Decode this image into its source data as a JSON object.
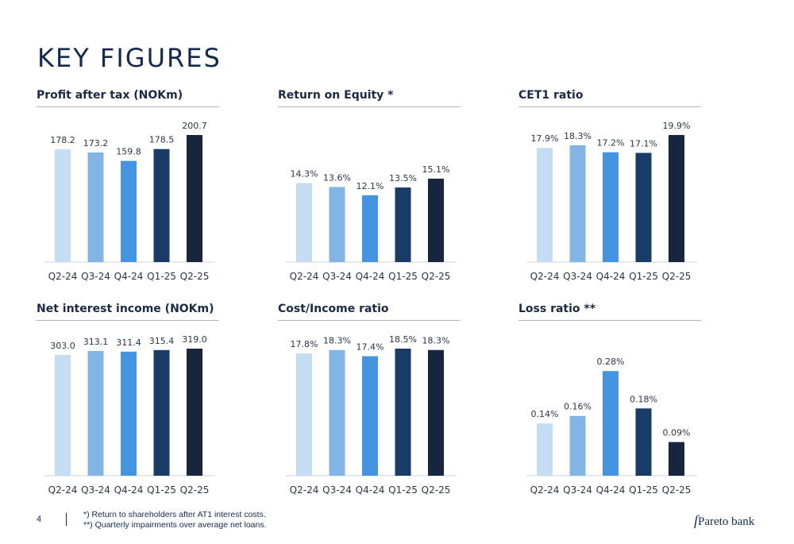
{
  "page": {
    "title": "KEY FIGURES",
    "page_number": "4",
    "footnotes": [
      "*) Return to shareholders after AT1 interest costs.",
      "**) Quarterly impairments over average net loans."
    ],
    "logo_text": "Pareto bank"
  },
  "colors": [
    "#c5ddf2",
    "#82b5e5",
    "#4494df",
    "#183c66",
    "#17253d"
  ],
  "chart_data": [
    {
      "type": "bar",
      "title": "Profit after tax (NOKm)",
      "categories": [
        "Q2-24",
        "Q3-24",
        "Q4-24",
        "Q1-25",
        "Q2-25"
      ],
      "values": [
        178.2,
        173.2,
        159.8,
        178.5,
        200.7
      ],
      "labels": [
        "178.2",
        "173.2",
        "159.8",
        "178.5",
        "200.7"
      ],
      "ylim": [
        0,
        200.7
      ],
      "grid": false
    },
    {
      "type": "bar",
      "title": "Return on Equity *",
      "categories": [
        "Q2-24",
        "Q3-24",
        "Q4-24",
        "Q1-25",
        "Q2-25"
      ],
      "values": [
        14.3,
        13.6,
        12.1,
        13.5,
        15.1
      ],
      "labels": [
        "14.3%",
        "13.6%",
        "12.1%",
        "13.5%",
        "15.1%"
      ],
      "ylim": [
        0,
        23
      ],
      "grid": false
    },
    {
      "type": "bar",
      "title": "CET1 ratio",
      "categories": [
        "Q2-24",
        "Q3-24",
        "Q4-24",
        "Q1-25",
        "Q2-25"
      ],
      "values": [
        17.9,
        18.3,
        17.2,
        17.1,
        19.9
      ],
      "labels": [
        "17.9%",
        "18.3%",
        "17.2%",
        "17.1%",
        "19.9%"
      ],
      "ylim": [
        0,
        19.9
      ],
      "grid": false
    },
    {
      "type": "bar",
      "title": "Net interest income (NOKm)",
      "categories": [
        "Q2-24",
        "Q3-24",
        "Q4-24",
        "Q1-25",
        "Q2-25"
      ],
      "values": [
        303.0,
        313.1,
        311.4,
        315.4,
        319.0
      ],
      "labels": [
        "303.0",
        "313.1",
        "311.4",
        "315.4",
        "319.0"
      ],
      "ylim": [
        0,
        319.0
      ],
      "grid": false
    },
    {
      "type": "bar",
      "title": "Cost/Income ratio",
      "categories": [
        "Q2-24",
        "Q3-24",
        "Q4-24",
        "Q1-25",
        "Q2-25"
      ],
      "values": [
        17.8,
        18.3,
        17.4,
        18.5,
        18.3
      ],
      "labels": [
        "17.8%",
        "18.3%",
        "17.4%",
        "18.5%",
        "18.3%"
      ],
      "ylim": [
        0,
        18.5
      ],
      "grid": false
    },
    {
      "type": "bar",
      "title": "Loss ratio **",
      "categories": [
        "Q2-24",
        "Q3-24",
        "Q4-24",
        "Q1-25",
        "Q2-25"
      ],
      "values": [
        0.14,
        0.16,
        0.28,
        0.18,
        0.09
      ],
      "labels": [
        "0.14%",
        "0.16%",
        "0.28%",
        "0.18%",
        "0.09%"
      ],
      "ylim": [
        0,
        0.34
      ],
      "grid": false
    }
  ]
}
